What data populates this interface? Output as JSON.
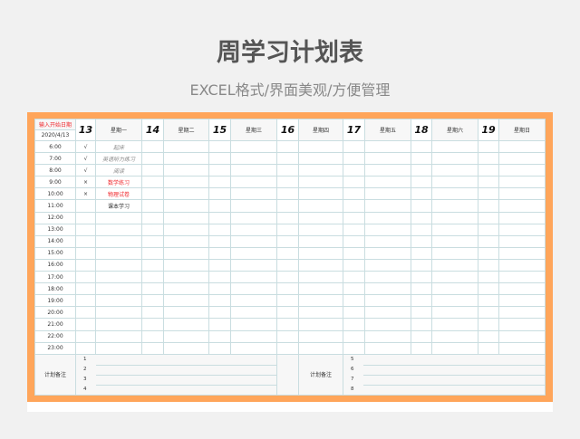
{
  "title": "周学习计划表",
  "subtitle": "EXCEL格式/界面美观/方便管理",
  "colors": {
    "frame": "#ffa55a",
    "accent_red": "#f0282d"
  },
  "header": {
    "start_label": "输入开始日期",
    "start_date": "2020/4/13",
    "days": [
      {
        "num": "13",
        "name": "星期一"
      },
      {
        "num": "14",
        "name": "星期二"
      },
      {
        "num": "15",
        "name": "星期三"
      },
      {
        "num": "16",
        "name": "星期四"
      },
      {
        "num": "17",
        "name": "星期五"
      },
      {
        "num": "18",
        "name": "星期六"
      },
      {
        "num": "19",
        "name": "星期日"
      }
    ]
  },
  "rows": [
    {
      "time": "6:00",
      "mark": "√",
      "task": "起床",
      "style": "ital"
    },
    {
      "time": "7:00",
      "mark": "√",
      "task": "英语听力练习",
      "style": "ital"
    },
    {
      "time": "8:00",
      "mark": "√",
      "task": "阅读",
      "style": "ital"
    },
    {
      "time": "9:00",
      "mark": "×",
      "task": "数学练习",
      "style": "red"
    },
    {
      "time": "10:00",
      "mark": "×",
      "task": "物理试卷",
      "style": "red"
    },
    {
      "time": "11:00",
      "mark": "",
      "task": "课本学习",
      "style": ""
    },
    {
      "time": "12:00"
    },
    {
      "time": "13:00"
    },
    {
      "time": "14:00"
    },
    {
      "time": "15:00"
    },
    {
      "time": "16:00"
    },
    {
      "time": "17:00"
    },
    {
      "time": "18:00"
    },
    {
      "time": "19:00"
    },
    {
      "time": "20:00"
    },
    {
      "time": "21:00"
    },
    {
      "time": "22:00"
    },
    {
      "time": "23:00"
    }
  ],
  "notes": {
    "label_left": "计划备注",
    "label_right": "计划备注",
    "left": [
      "1",
      "2",
      "3",
      "4"
    ],
    "right": [
      "5",
      "6",
      "7",
      "8"
    ]
  }
}
